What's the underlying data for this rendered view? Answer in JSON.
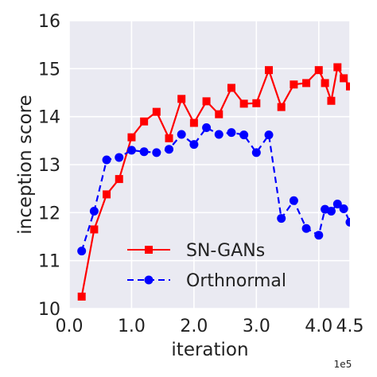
{
  "chart_data": {
    "type": "line",
    "xlabel": "iteration",
    "ylabel": "inception score",
    "x_exponent_label": "1e5",
    "xlim": [
      0,
      4.5
    ],
    "ylim": [
      10,
      16
    ],
    "x_ticks": [
      0.0,
      1.0,
      2.0,
      3.0,
      4.0,
      4.5
    ],
    "x_tick_labels": [
      "0.0",
      "1.0",
      "2.0",
      "3.0",
      "4.0",
      "4.5"
    ],
    "y_ticks": [
      10,
      11,
      12,
      13,
      14,
      15,
      16
    ],
    "y_tick_labels": [
      "10",
      "11",
      "12",
      "13",
      "14",
      "15",
      "16"
    ],
    "grid": true,
    "background": "#eaeaf2",
    "legend_position": "lower-center",
    "series": [
      {
        "name": "SN-GANs",
        "color": "#ff0000",
        "marker": "square",
        "linestyle": "solid",
        "x": [
          0.2,
          0.4,
          0.6,
          0.8,
          1.0,
          1.2,
          1.4,
          1.6,
          1.8,
          2.0,
          2.2,
          2.4,
          2.6,
          2.8,
          3.0,
          3.2,
          3.4,
          3.6,
          3.8,
          4.0,
          4.1,
          4.2,
          4.3,
          4.4,
          4.5
        ],
        "y": [
          10.25,
          11.65,
          12.38,
          12.7,
          13.57,
          13.9,
          14.1,
          13.55,
          14.37,
          13.87,
          14.32,
          14.05,
          14.6,
          14.27,
          14.28,
          14.97,
          14.2,
          14.67,
          14.7,
          14.97,
          14.7,
          14.33,
          15.03,
          14.8,
          14.63
        ]
      },
      {
        "name": "Orthnormal",
        "color": "#0000ff",
        "marker": "circle",
        "linestyle": "dashed",
        "x": [
          0.2,
          0.4,
          0.6,
          0.8,
          1.0,
          1.2,
          1.4,
          1.6,
          1.8,
          2.0,
          2.2,
          2.4,
          2.6,
          2.8,
          3.0,
          3.2,
          3.4,
          3.6,
          3.8,
          4.0,
          4.1,
          4.2,
          4.3,
          4.4,
          4.5
        ],
        "y": [
          11.2,
          12.03,
          13.1,
          13.15,
          13.3,
          13.27,
          13.25,
          13.32,
          13.63,
          13.42,
          13.77,
          13.63,
          13.67,
          13.62,
          13.25,
          13.62,
          11.88,
          12.25,
          11.67,
          11.53,
          12.07,
          12.03,
          12.18,
          12.08,
          11.8
        ]
      }
    ]
  }
}
